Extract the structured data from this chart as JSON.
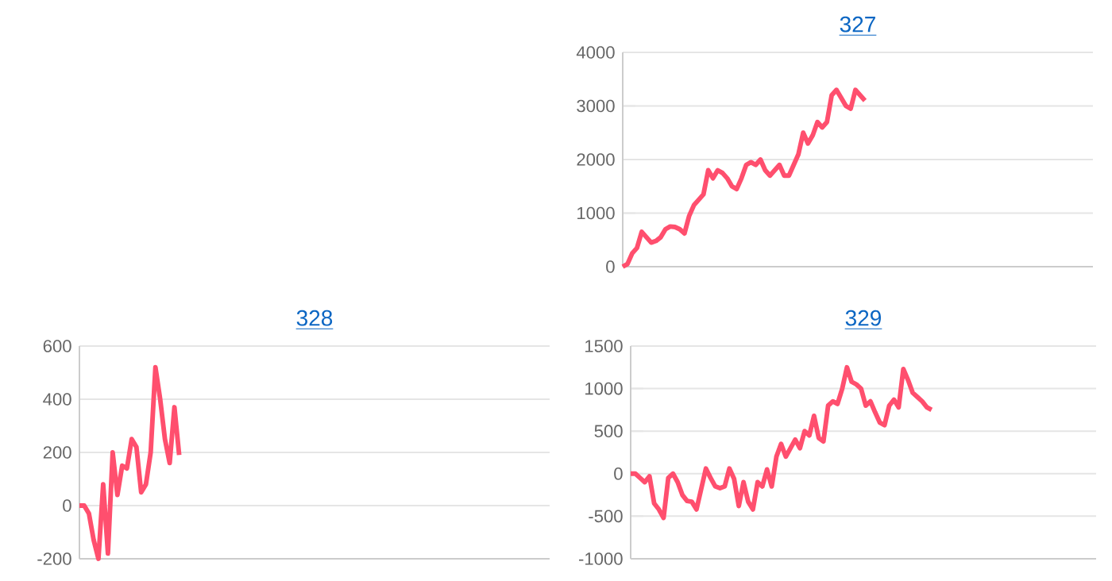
{
  "chart_data": [
    {
      "type": "line",
      "title": "327",
      "categories": [
        null,
        null,
        null,
        null,
        null,
        null,
        null,
        null,
        null,
        null,
        null,
        null,
        null,
        null,
        null,
        null,
        null,
        null,
        null,
        null,
        null,
        null,
        null,
        null,
        null,
        null,
        null,
        null,
        null,
        null,
        null,
        null,
        null,
        null,
        null,
        null,
        null,
        null,
        null,
        null,
        null,
        null,
        null,
        null,
        null,
        null,
        null,
        null,
        null,
        null,
        null,
        null,
        null,
        null,
        null,
        null,
        null,
        null,
        null,
        null,
        null,
        null,
        null,
        null,
        null,
        null,
        null,
        null,
        null,
        null,
        null,
        null,
        null,
        null,
        null,
        null,
        null,
        null,
        null,
        null,
        null,
        null,
        null,
        null,
        null,
        null,
        null,
        null,
        null,
        null,
        null,
        null,
        null,
        null,
        null,
        null,
        null,
        null,
        null,
        null
      ],
      "series": [
        {
          "color": "#ff4f6e",
          "values": [
            0,
            50,
            250,
            350,
            650,
            550,
            450,
            480,
            550,
            700,
            750,
            740,
            700,
            620,
            950,
            1150,
            1250,
            1350,
            1800,
            1650,
            1800,
            1750,
            1650,
            1500,
            1450,
            1650,
            1900,
            1950,
            1900,
            2000,
            1800,
            1700,
            1800,
            1900,
            1700,
            1700,
            1900,
            2100,
            2500,
            2300,
            2450,
            2700,
            2600,
            2700,
            3200,
            3300,
            3150,
            3000,
            2950,
            3300,
            3200,
            3100,
            null,
            null,
            null,
            null,
            null,
            null,
            null,
            null,
            null,
            null,
            null,
            null,
            null,
            null,
            null,
            null,
            null,
            null,
            null,
            null,
            null,
            null,
            null,
            null,
            null,
            null,
            null,
            null,
            null,
            null,
            null,
            null,
            null,
            null,
            null,
            null,
            null,
            null,
            null,
            null,
            null,
            null,
            null,
            null,
            null,
            null,
            null,
            null
          ]
        }
      ],
      "ylim": [
        0,
        4000
      ],
      "yticks": [
        0,
        1000,
        2000,
        3000,
        4000
      ],
      "grid": "y",
      "tick_labels": "y"
    },
    {
      "type": "line",
      "title": "328",
      "categories": [
        null,
        null,
        null,
        null,
        null,
        null,
        null,
        null,
        null,
        null,
        null,
        null,
        null,
        null,
        null,
        null,
        null,
        null,
        null,
        null,
        null,
        null,
        null,
        null,
        null,
        null,
        null,
        null,
        null,
        null,
        null,
        null,
        null,
        null,
        null,
        null,
        null,
        null,
        null,
        null,
        null,
        null,
        null,
        null,
        null,
        null,
        null,
        null,
        null,
        null,
        null,
        null,
        null,
        null,
        null,
        null,
        null,
        null,
        null,
        null,
        null,
        null,
        null,
        null,
        null,
        null,
        null,
        null,
        null,
        null,
        null,
        null,
        null,
        null,
        null,
        null,
        null,
        null,
        null,
        null,
        null,
        null,
        null,
        null,
        null,
        null,
        null,
        null,
        null,
        null,
        null,
        null,
        null,
        null,
        null,
        null,
        null,
        null,
        null,
        null
      ],
      "series": [
        {
          "color": "#ff4f6e",
          "values": [
            0,
            0,
            -30,
            -130,
            -200,
            80,
            -180,
            200,
            40,
            150,
            140,
            250,
            220,
            50,
            80,
            200,
            520,
            400,
            250,
            160,
            370,
            190,
            null,
            null,
            null,
            null,
            null,
            null,
            null,
            null,
            null,
            null,
            null,
            null,
            null,
            null,
            null,
            null,
            null,
            null,
            null,
            null,
            null,
            null,
            null,
            null,
            null,
            null,
            null,
            null,
            null,
            null,
            null,
            null,
            null,
            null,
            null,
            null,
            null,
            null,
            null,
            null,
            null,
            null,
            null,
            null,
            null,
            null,
            null,
            null,
            null,
            null,
            null,
            null,
            null,
            null,
            null,
            null,
            null,
            null,
            null,
            null,
            null,
            null,
            null,
            null,
            null,
            null,
            null,
            null,
            null,
            null,
            null,
            null,
            null,
            null,
            null,
            null,
            null,
            null
          ]
        }
      ],
      "ylim": [
        -200,
        600
      ],
      "yticks": [
        -200,
        0,
        200,
        400,
        600
      ],
      "grid": "y",
      "tick_labels": "y"
    },
    {
      "type": "line",
      "title": "329",
      "categories": [
        null,
        null,
        null,
        null,
        null,
        null,
        null,
        null,
        null,
        null,
        null,
        null,
        null,
        null,
        null,
        null,
        null,
        null,
        null,
        null,
        null,
        null,
        null,
        null,
        null,
        null,
        null,
        null,
        null,
        null,
        null,
        null,
        null,
        null,
        null,
        null,
        null,
        null,
        null,
        null,
        null,
        null,
        null,
        null,
        null,
        null,
        null,
        null,
        null,
        null,
        null,
        null,
        null,
        null,
        null,
        null,
        null,
        null,
        null,
        null,
        null,
        null,
        null,
        null,
        null,
        null,
        null,
        null,
        null,
        null,
        null,
        null,
        null,
        null,
        null,
        null,
        null,
        null,
        null,
        null,
        null,
        null,
        null,
        null,
        null,
        null,
        null,
        null,
        null,
        null,
        null,
        null,
        null,
        null,
        null,
        null,
        null,
        null,
        null,
        null
      ],
      "series": [
        {
          "color": "#ff4f6e",
          "values": [
            0,
            0,
            -50,
            -100,
            -30,
            -350,
            -420,
            -520,
            -50,
            0,
            -100,
            -250,
            -320,
            -330,
            -420,
            -180,
            60,
            -50,
            -150,
            -170,
            -150,
            60,
            -60,
            -380,
            -100,
            -330,
            -420,
            -100,
            -150,
            50,
            -150,
            200,
            350,
            200,
            300,
            400,
            300,
            500,
            450,
            680,
            420,
            380,
            800,
            850,
            820,
            1000,
            1250,
            1080,
            1050,
            1000,
            800,
            850,
            720,
            600,
            570,
            800,
            870,
            780,
            1230,
            1100,
            950,
            900,
            850,
            780,
            750,
            null,
            null,
            null,
            null,
            null,
            null,
            null,
            null,
            null,
            null,
            null,
            null,
            null,
            null,
            null,
            null,
            null,
            null,
            null,
            null,
            null,
            null,
            null,
            null,
            null,
            null,
            null,
            null,
            null,
            null,
            null,
            null,
            null,
            null,
            null
          ]
        }
      ],
      "ylim": [
        -1000,
        1500
      ],
      "yticks": [
        -1000,
        -500,
        0,
        500,
        1000,
        1500
      ],
      "grid": "y",
      "tick_labels": "y"
    }
  ]
}
